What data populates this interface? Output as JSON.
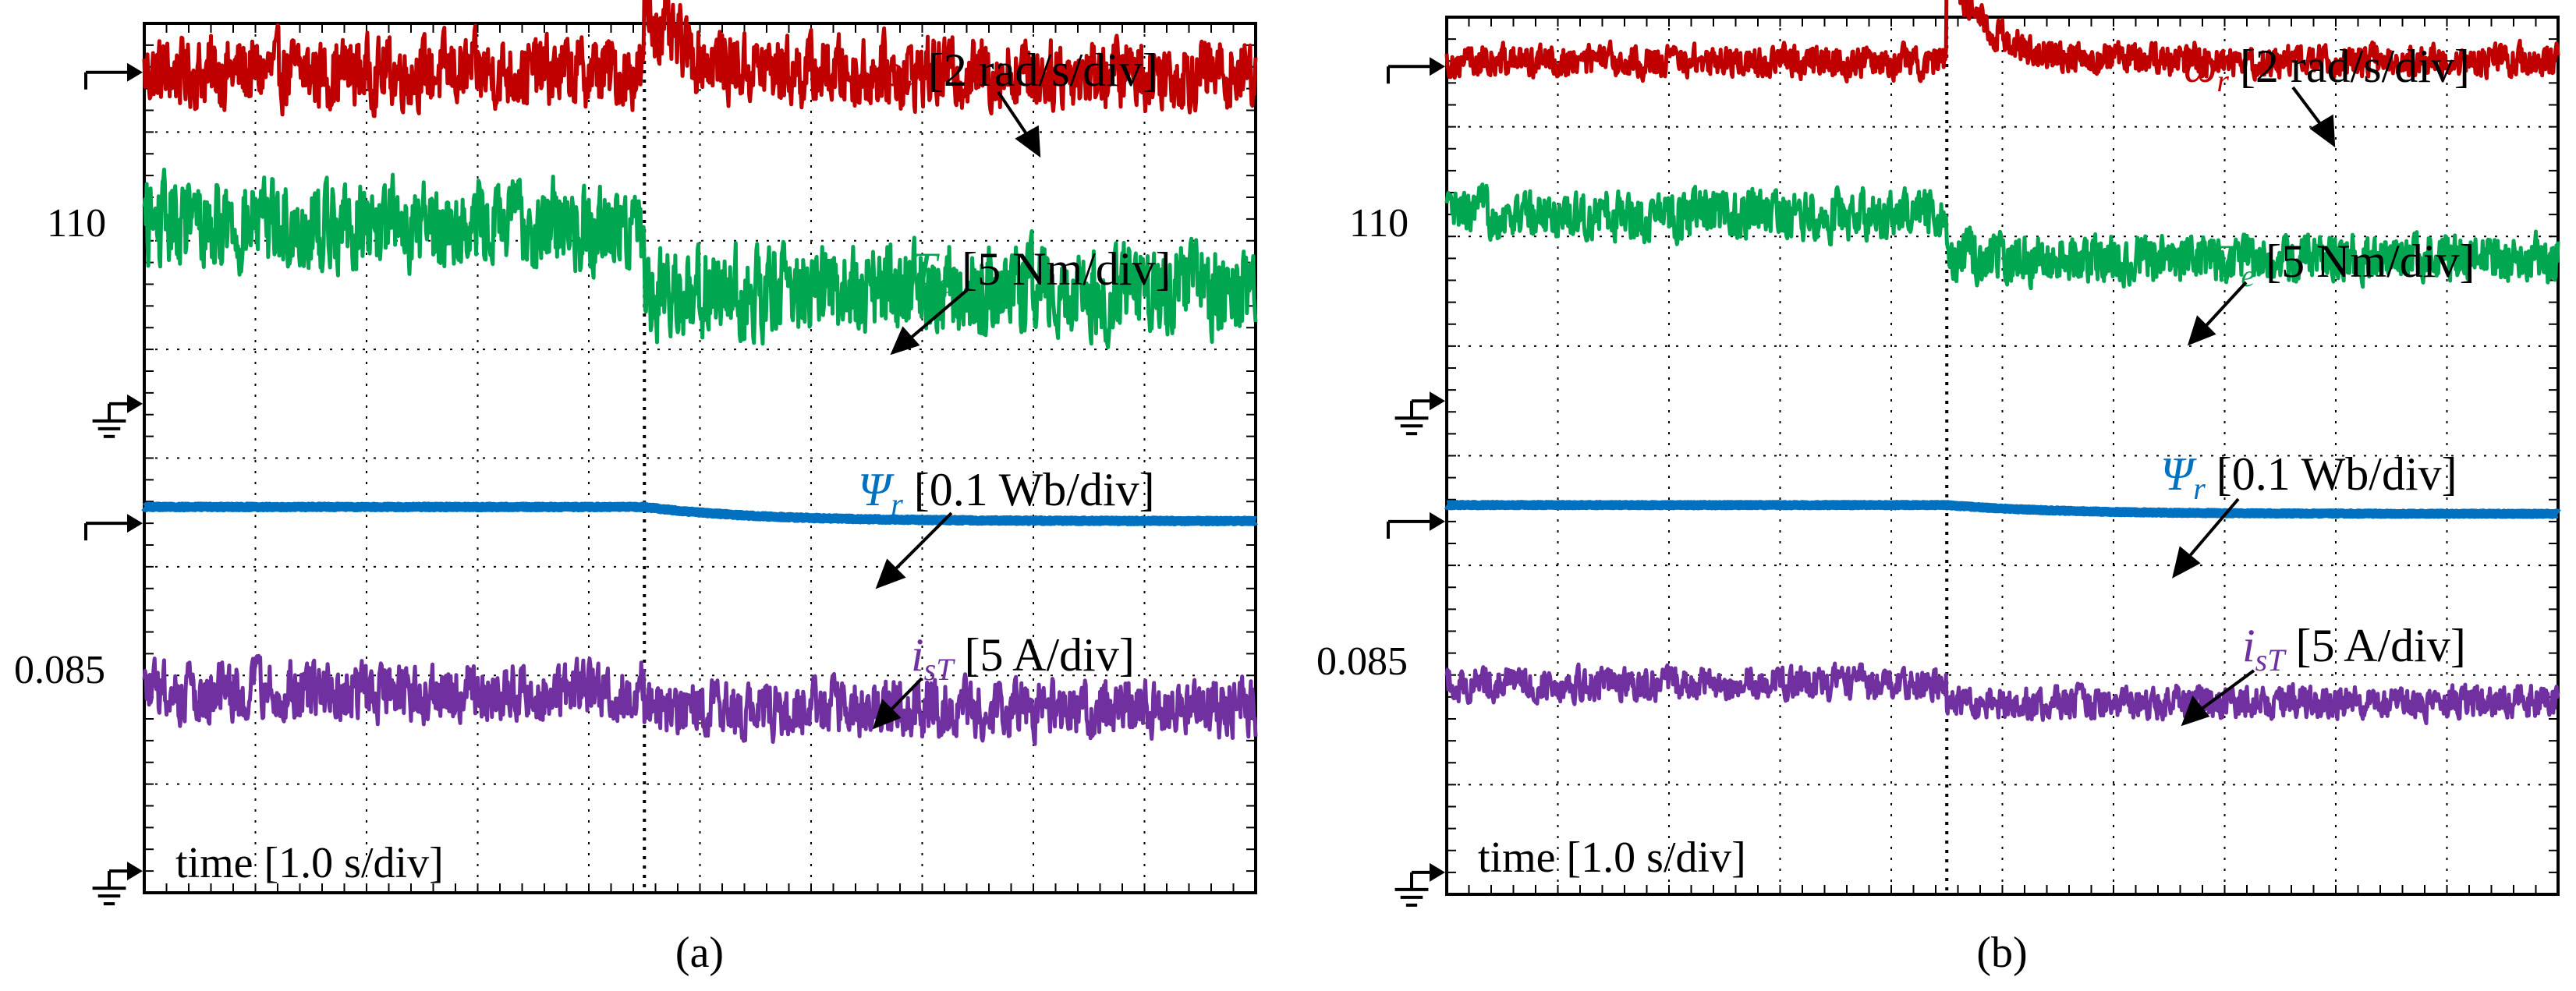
{
  "figure": {
    "colors": {
      "speed": "#c00000",
      "torque": "#00a650",
      "flux": "#0070c0",
      "current": "#7030a0",
      "grid": "#000000"
    },
    "panels": [
      {
        "caption": "(a)",
        "ref_speed_label": "110",
        "ref_flux_label": "0.085",
        "time_label": "time [1.0 s/div]",
        "traces": [
          {
            "key": "speed",
            "symbol": "ω",
            "sub": "r",
            "scale": "[2 rad/s/div]",
            "color": "#c00000"
          },
          {
            "key": "torque",
            "symbol": "T",
            "sub": "e",
            "scale": "[5 Nm/div]",
            "color": "#00a650"
          },
          {
            "key": "flux",
            "symbol": "Ψ",
            "sub": "r",
            "scale": "[0.1 Wb/div]",
            "color": "#0070c0"
          },
          {
            "key": "current",
            "symbol": "i",
            "sub": "sT",
            "scale": "[5 A/div]",
            "color": "#7030a0"
          }
        ]
      },
      {
        "caption": "(b)",
        "ref_speed_label": "110",
        "ref_flux_label": "0.085",
        "time_label": "time [1.0 s/div]",
        "traces": [
          {
            "key": "speed",
            "symbol": "ω",
            "sub": "r",
            "scale": "[2 rad/s/div]",
            "color": "#c00000"
          },
          {
            "key": "torque",
            "symbol": "T",
            "sub": "e",
            "scale": "[5 Nm/div]",
            "color": "#00a650"
          },
          {
            "key": "flux",
            "symbol": "Ψ",
            "sub": "r",
            "scale": "[0.1 Wb/div]",
            "color": "#0070c0"
          },
          {
            "key": "current",
            "symbol": "i",
            "sub": "sT",
            "scale": "[5 A/div]",
            "color": "#7030a0"
          }
        ]
      }
    ]
  },
  "chart_data": [
    {
      "type": "line",
      "title": "(a)",
      "xlabel": "time [1.0 s/div]",
      "x_unit": "div",
      "x_range": [
        0,
        10
      ],
      "y_unit": "div",
      "y_range": [
        0,
        8
      ],
      "grid": true,
      "event_at_div": 4.5,
      "reference_markers": [
        {
          "label": "110",
          "y_div": 7.55
        },
        {
          "label": "0.085",
          "y_div": 3.4
        },
        {
          "label": "ground",
          "y_div": 4.5
        },
        {
          "label": "ground",
          "y_div": 0.2
        }
      ],
      "series": [
        {
          "name": "ωr [2 rad/s/div]",
          "base_before_div": 7.55,
          "base_after_div": 7.55,
          "step_after_div": 0.0,
          "overshoot_div": 0.6,
          "noise_div": 0.22
        },
        {
          "name": "Te [5 Nm/div]",
          "base_before_div": 6.15,
          "base_after_div": 5.55,
          "step_after_div": -0.6,
          "overshoot_div": 0.0,
          "noise_div": 0.28
        },
        {
          "name": "Ψr [0.1 Wb/div]",
          "base_before_div": 3.55,
          "base_after_div": 3.42,
          "step_after_div": -0.13,
          "overshoot_div": 0.0,
          "noise_div": 0.02
        },
        {
          "name": "isT [5 A/div]",
          "base_before_div": 1.85,
          "base_after_div": 1.7,
          "step_after_div": -0.15,
          "overshoot_div": 0.0,
          "noise_div": 0.18
        }
      ]
    },
    {
      "type": "line",
      "title": "(b)",
      "xlabel": "time [1.0 s/div]",
      "x_unit": "div",
      "x_range": [
        0,
        10
      ],
      "y_unit": "div",
      "y_range": [
        0,
        8
      ],
      "grid": true,
      "event_at_div": 4.5,
      "reference_markers": [
        {
          "label": "110",
          "y_div": 7.55
        },
        {
          "label": "0.085",
          "y_div": 3.4
        },
        {
          "label": "ground",
          "y_div": 4.5
        },
        {
          "label": "ground",
          "y_div": 0.2
        }
      ],
      "series": [
        {
          "name": "ωr [2 rad/s/div]",
          "base_before_div": 7.6,
          "base_after_div": 7.6,
          "step_after_div": 0.0,
          "overshoot_div": 0.9,
          "noise_div": 0.1
        },
        {
          "name": "Te [5 Nm/div]",
          "base_before_div": 6.2,
          "base_after_div": 5.8,
          "step_after_div": -0.4,
          "overshoot_div": 0.0,
          "noise_div": 0.15
        },
        {
          "name": "Ψr [0.1 Wb/div]",
          "base_before_div": 3.55,
          "base_after_div": 3.47,
          "step_after_div": -0.08,
          "overshoot_div": 0.0,
          "noise_div": 0.015
        },
        {
          "name": "isT [5 A/div]",
          "base_before_div": 1.92,
          "base_after_div": 1.75,
          "step_after_div": -0.17,
          "overshoot_div": 0.0,
          "noise_div": 0.1
        }
      ]
    }
  ]
}
